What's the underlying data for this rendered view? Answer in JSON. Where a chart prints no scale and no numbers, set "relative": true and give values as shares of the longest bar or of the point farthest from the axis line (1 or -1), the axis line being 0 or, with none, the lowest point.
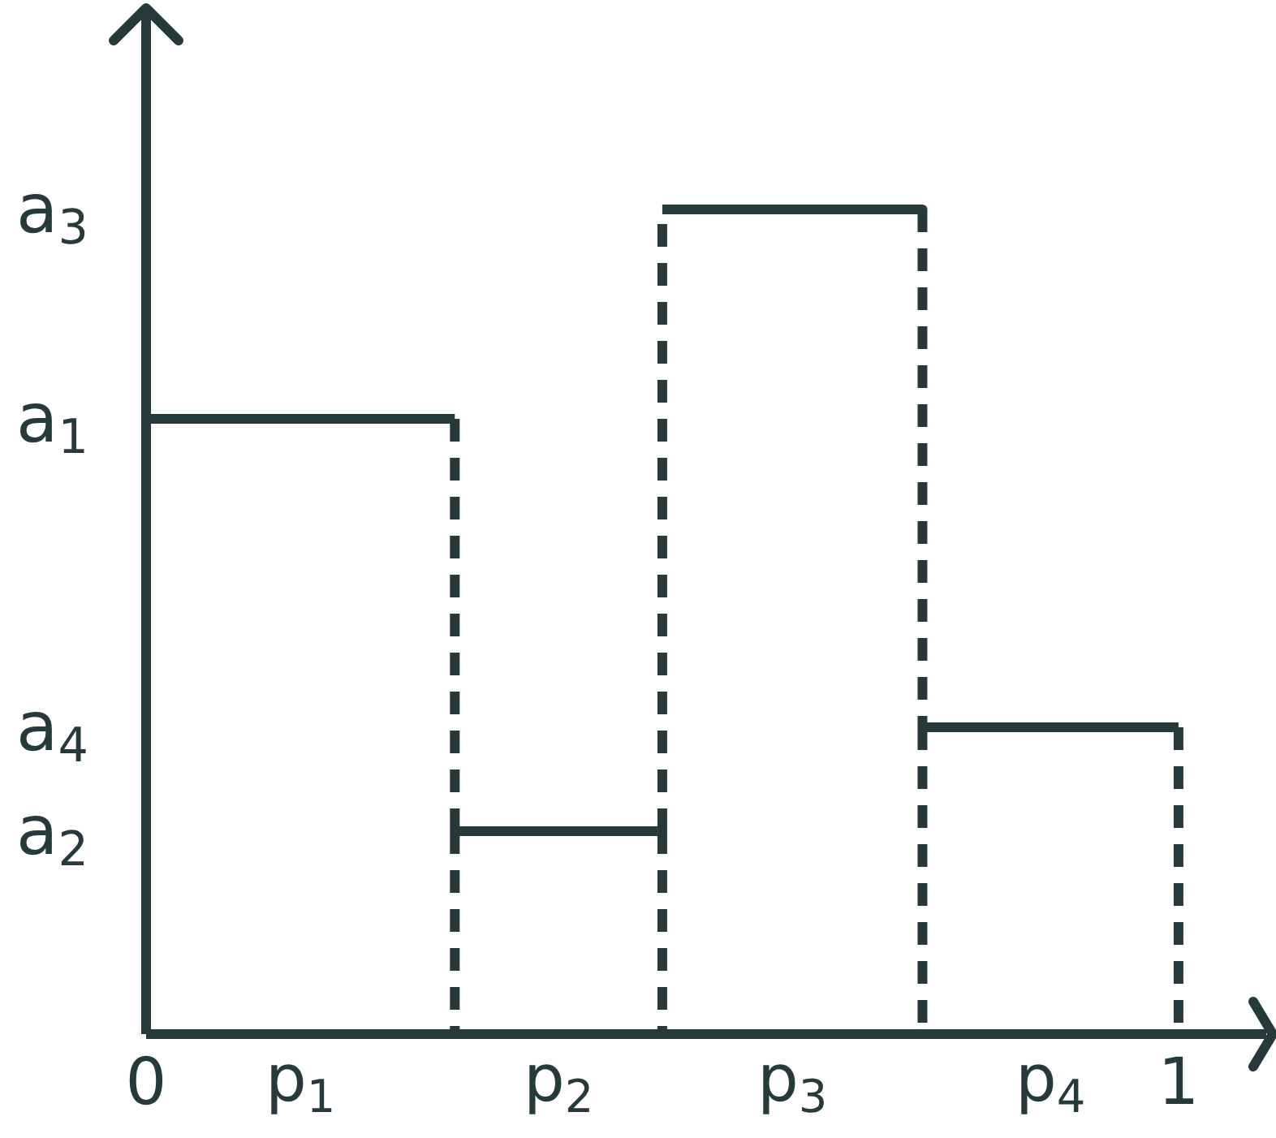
{
  "chart_data": {
    "type": "step",
    "relative": true,
    "xlim": [
      0,
      1.085
    ],
    "xticks": [
      0,
      1
    ],
    "x": [
      0,
      0.299,
      0.5,
      0.752,
      1
    ],
    "series": [
      {
        "color": "#263a3c",
        "line_style": "dashed",
        "values": [
          0.746,
          0.246,
          1,
          0.372,
          0.372
        ]
      }
    ],
    "annotations": [
      "a$_{3}$",
      "a$_{1}$",
      "a$_{4}$",
      "a$_{2}$",
      "p$_{1}$",
      "p$_{2}$",
      "p$_{3}$",
      "p$_{4}$"
    ]
  }
}
